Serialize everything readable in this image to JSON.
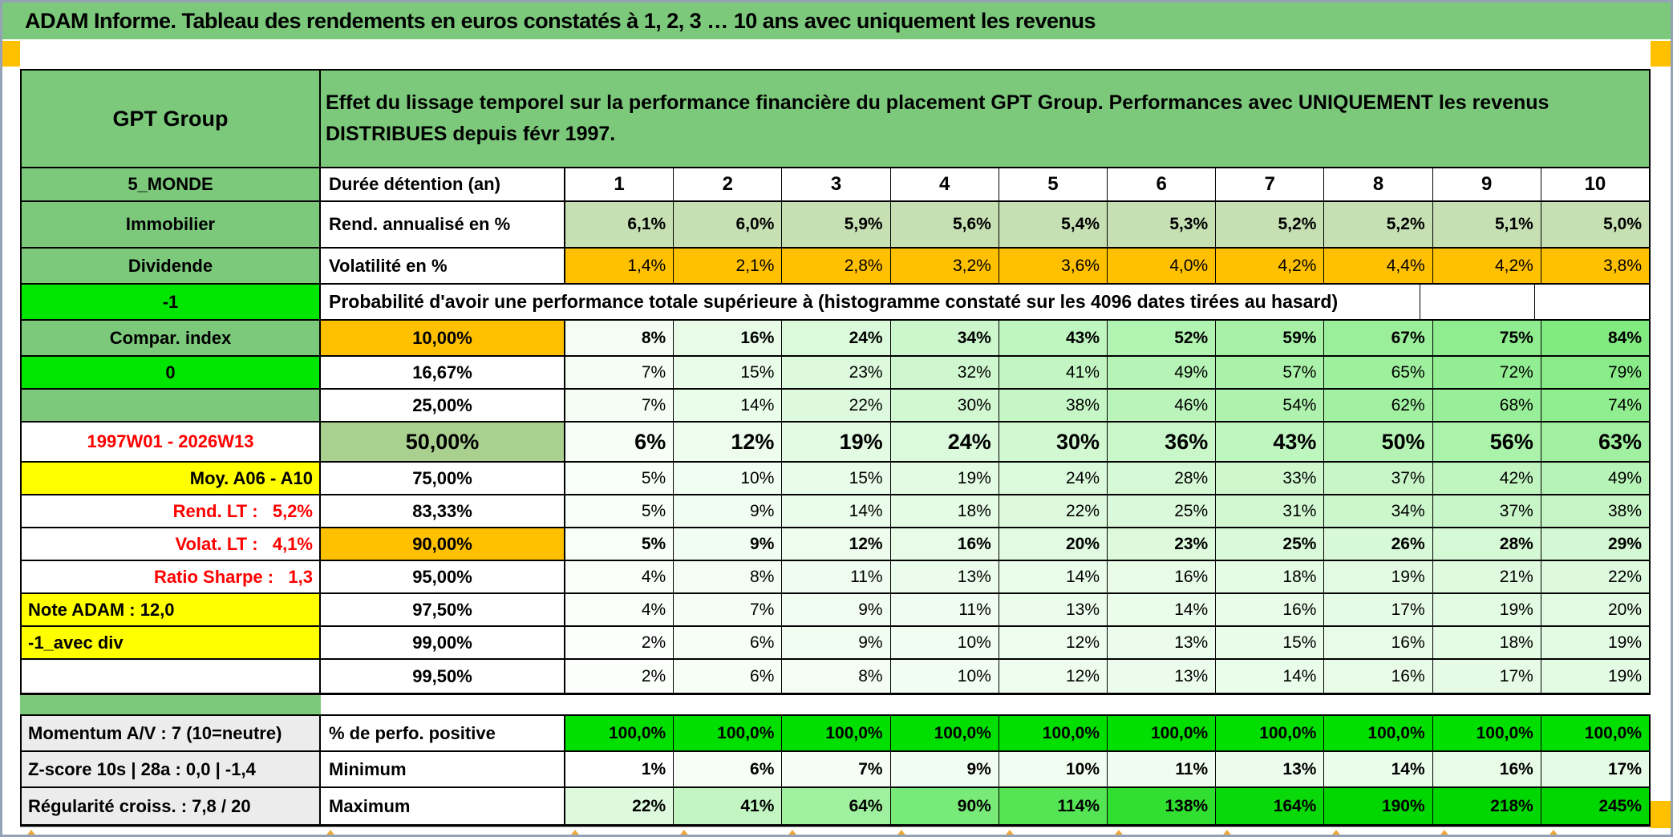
{
  "title_bar": {
    "text": "ADAM Informe. Tableau des rendements en euros constatés à 1, 2, 3 … 10 ans avec uniquement les revenus"
  },
  "colors": {
    "header_green": "#7CC97C",
    "bright_green": "#00E600",
    "full_green": "#00DF00",
    "scale_green_max": "#00D700",
    "light_green": "#C6E0B4",
    "sage_green": "#A9D08E",
    "orange": "#FFC000",
    "yellow": "#FFFF00",
    "gray_label": "#ECECEC",
    "red_text": "#FF0000"
  },
  "table": {
    "header": {
      "asset": "GPT Group",
      "description": "Effet du lissage temporel sur la performance financière du placement GPT Group. Performances avec UNIQUEMENT les revenus DISTRIBUES depuis févr 1997."
    },
    "col_header_row": {
      "a": "5_MONDE",
      "b": "Durée détention (an)"
    },
    "columns": [
      "1",
      "2",
      "3",
      "4",
      "5",
      "6",
      "7",
      "8",
      "9",
      "10"
    ],
    "main_rows": [
      {
        "kind": "data",
        "size": "tall",
        "a": {
          "text": "Immobilier",
          "bg": "green"
        },
        "b": {
          "text": "Rend. annualisé en %",
          "align": "left"
        },
        "cells": {
          "fill": "lightgreen",
          "bold": true,
          "values": [
            "6,1%",
            "6,0%",
            "5,9%",
            "5,6%",
            "5,4%",
            "5,3%",
            "5,2%",
            "5,2%",
            "5,1%",
            "5,0%"
          ]
        }
      },
      {
        "kind": "data",
        "size": "mid",
        "a": {
          "text": "Dividende",
          "bg": "green"
        },
        "b": {
          "text": "Volatilité en %",
          "align": "left"
        },
        "cells": {
          "fill": "orange",
          "bold": false,
          "values": [
            "1,4%",
            "2,1%",
            "2,8%",
            "3,2%",
            "3,6%",
            "4,0%",
            "4,2%",
            "4,4%",
            "4,2%",
            "3,8%"
          ]
        }
      },
      {
        "kind": "prob-header",
        "size": "mid",
        "a": {
          "text": "-1",
          "bg": "bright",
          "marker": true
        },
        "span_text": "Probabilité d'avoir une performance totale supérieure à (histogramme constaté sur les 4096 dates tirées au hasard)"
      },
      {
        "kind": "data",
        "size": "mid",
        "a": {
          "text": "Compar. index",
          "bg": "green"
        },
        "b": {
          "text": "10,00%",
          "bg": "orange"
        },
        "cells": {
          "fill": "scale",
          "bold": true,
          "values": [
            "8%",
            "16%",
            "24%",
            "34%",
            "43%",
            "52%",
            "59%",
            "67%",
            "75%",
            "84%"
          ]
        }
      },
      {
        "kind": "data",
        "size": "std",
        "a": {
          "text": "0",
          "bg": "bright",
          "marker": true
        },
        "b": {
          "text": "16,67%"
        },
        "cells": {
          "fill": "scale",
          "bold": false,
          "values": [
            "7%",
            "15%",
            "23%",
            "32%",
            "41%",
            "49%",
            "57%",
            "65%",
            "72%",
            "79%"
          ]
        }
      },
      {
        "kind": "data",
        "size": "std",
        "a": {
          "text": "",
          "bg": "green"
        },
        "b": {
          "text": "25,00%"
        },
        "cells": {
          "fill": "scale",
          "bold": false,
          "values": [
            "7%",
            "14%",
            "22%",
            "30%",
            "38%",
            "46%",
            "54%",
            "62%",
            "68%",
            "74%"
          ]
        }
      },
      {
        "kind": "data",
        "size": "big",
        "a": {
          "text": "1997W01 - 2026W13",
          "color": "red"
        },
        "b": {
          "text": "50,00%",
          "bg": "sage",
          "big": true
        },
        "cells": {
          "fill": "scale",
          "bold": true,
          "big": true,
          "values": [
            "6%",
            "12%",
            "19%",
            "24%",
            "30%",
            "36%",
            "43%",
            "50%",
            "56%",
            "63%"
          ]
        }
      },
      {
        "kind": "data",
        "size": "std",
        "a": {
          "text": "Moy. A06 - A10",
          "bg": "yellow",
          "align": "right"
        },
        "b": {
          "text": "75,00%"
        },
        "cells": {
          "fill": "scale",
          "bold": false,
          "values": [
            "5%",
            "10%",
            "15%",
            "19%",
            "24%",
            "28%",
            "33%",
            "37%",
            "42%",
            "49%"
          ]
        }
      },
      {
        "kind": "data",
        "size": "std",
        "a": {
          "text": "Rend. LT :   5,2%",
          "color": "red",
          "align": "right"
        },
        "b": {
          "text": "83,33%"
        },
        "cells": {
          "fill": "scale",
          "bold": false,
          "values": [
            "5%",
            "9%",
            "14%",
            "18%",
            "22%",
            "25%",
            "31%",
            "34%",
            "37%",
            "38%"
          ]
        }
      },
      {
        "kind": "data",
        "size": "std",
        "a": {
          "text": "Volat. LT :   4,1%",
          "color": "red",
          "align": "right"
        },
        "b": {
          "text": "90,00%",
          "bg": "orange"
        },
        "cells": {
          "fill": "scale",
          "bold": true,
          "values": [
            "5%",
            "9%",
            "12%",
            "16%",
            "20%",
            "23%",
            "25%",
            "26%",
            "28%",
            "29%"
          ]
        }
      },
      {
        "kind": "data",
        "size": "std",
        "a": {
          "text": "Ratio Sharpe :   1,3",
          "color": "red",
          "align": "right"
        },
        "b": {
          "text": "95,00%"
        },
        "cells": {
          "fill": "scale",
          "bold": false,
          "values": [
            "4%",
            "8%",
            "11%",
            "13%",
            "14%",
            "16%",
            "18%",
            "19%",
            "21%",
            "22%"
          ]
        }
      },
      {
        "kind": "data",
        "size": "std",
        "a": {
          "text": "Note ADAM : 12,0",
          "bg": "yellow",
          "align": "left"
        },
        "b": {
          "text": "97,50%"
        },
        "cells": {
          "fill": "scale",
          "bold": false,
          "values": [
            "4%",
            "7%",
            "9%",
            "11%",
            "13%",
            "14%",
            "16%",
            "17%",
            "19%",
            "20%"
          ]
        }
      },
      {
        "kind": "data",
        "size": "std",
        "a": {
          "text": "-1_avec div",
          "bg": "yellow",
          "align": "left"
        },
        "b": {
          "text": "99,00%"
        },
        "cells": {
          "fill": "scale",
          "bold": false,
          "values": [
            "2%",
            "6%",
            "9%",
            "10%",
            "12%",
            "13%",
            "15%",
            "16%",
            "18%",
            "19%"
          ]
        }
      },
      {
        "kind": "data",
        "size": "std",
        "a": {
          "text": ""
        },
        "b": {
          "text": "99,50%"
        },
        "cells": {
          "fill": "scale",
          "bold": false,
          "values": [
            "2%",
            "6%",
            "8%",
            "10%",
            "12%",
            "13%",
            "14%",
            "16%",
            "17%",
            "19%"
          ]
        }
      }
    ],
    "bottom_rows": [
      {
        "size": "mid",
        "a": {
          "text": "Momentum A/V : 7 (10=neutre)",
          "bg": "gray",
          "align": "left"
        },
        "b": {
          "text": "% de perfo. positive",
          "align": "left"
        },
        "cells": {
          "fill": "fullgreen",
          "bold": true,
          "values": [
            "100,0%",
            "100,0%",
            "100,0%",
            "100,0%",
            "100,0%",
            "100,0%",
            "100,0%",
            "100,0%",
            "100,0%",
            "100,0%"
          ]
        }
      },
      {
        "size": "mid",
        "a": {
          "text": "Z-score 10s | 28a : 0,0 | -1,4",
          "bg": "gray",
          "align": "left"
        },
        "b": {
          "text": "Minimum",
          "align": "left"
        },
        "cells": {
          "fill": "scale",
          "bold": true,
          "values": [
            "1%",
            "6%",
            "7%",
            "9%",
            "10%",
            "11%",
            "13%",
            "14%",
            "16%",
            "17%"
          ]
        }
      },
      {
        "size": "mid",
        "a": {
          "text": "Régularité croiss. : 7,8 / 20",
          "bg": "gray",
          "align": "left"
        },
        "b": {
          "text": "Maximum",
          "align": "left"
        },
        "cells": {
          "fill": "scale",
          "bold": true,
          "values": [
            "22%",
            "41%",
            "64%",
            "90%",
            "114%",
            "138%",
            "164%",
            "190%",
            "218%",
            "245%"
          ]
        }
      }
    ]
  }
}
